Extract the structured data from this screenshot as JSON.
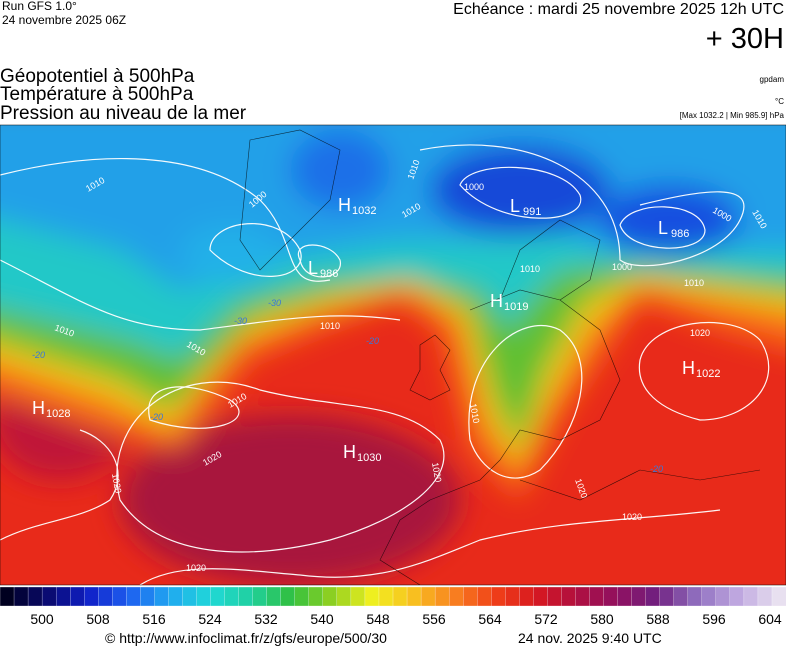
{
  "header": {
    "run": "Run GFS 1.0°",
    "run_date": "24 novembre 2025 06Z",
    "forecast": "Echéance : mardi 25 novembre 2025 12h UTC",
    "lead": "+ 30H"
  },
  "titles": [
    "Géopotentiel à 500hPa",
    "Température à 500hPa",
    "Pression au niveau de la mer"
  ],
  "units": {
    "geopotential": "gpdam",
    "temperature": "°C",
    "pressure_range": "[Max 1032.2 | Min 985.9] hPa"
  },
  "centers": [
    {
      "type": "H",
      "value": "1032"
    },
    {
      "type": "L",
      "value": "986"
    },
    {
      "type": "L",
      "value": "991"
    },
    {
      "type": "L",
      "value": "986"
    },
    {
      "type": "H",
      "value": "1019"
    },
    {
      "type": "H",
      "value": "1028"
    },
    {
      "type": "H",
      "value": "1030"
    },
    {
      "type": "H",
      "value": "1022"
    }
  ],
  "isobar_labels": [
    "1010",
    "1000",
    "1010",
    "1010",
    "1000",
    "1010",
    "1000",
    "1000",
    "1010",
    "1010",
    "1010",
    "1010",
    "1010",
    "1020",
    "1020",
    "1020",
    "1010",
    "1020",
    "1020",
    "1020",
    "1010",
    "1020"
  ],
  "isotherm_labels": [
    "-30",
    "-30",
    "-20",
    "-20",
    "-20",
    "-20"
  ],
  "legend": {
    "ticks": [
      500,
      508,
      516,
      524,
      532,
      540,
      548,
      556,
      564,
      572,
      580,
      588,
      596,
      604
    ],
    "colors": [
      "#000020",
      "#0a0a70",
      "#1020c8",
      "#1e60f0",
      "#20a8f0",
      "#20d8d8",
      "#20d0a0",
      "#30c040",
      "#90d020",
      "#f0f020",
      "#f8c020",
      "#f88020",
      "#f04018",
      "#d81820",
      "#b01040",
      "#901060",
      "#702080",
      "#9070c0",
      "#c0a8e0",
      "#e8e0f0"
    ]
  },
  "footer": {
    "url": "© http://www.infoclimat.fr/z/gfs/europe/500/30",
    "stamp": "24 nov. 2025  9:40 UTC"
  }
}
